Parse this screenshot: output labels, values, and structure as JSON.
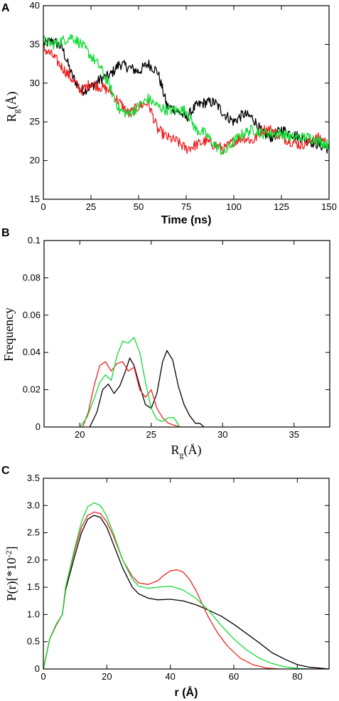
{
  "figure": {
    "panels": [
      "A",
      "B",
      "C"
    ]
  },
  "colors": {
    "black": "#000000",
    "red": "#ee2222",
    "green": "#11dd33"
  },
  "chart_data": [
    {
      "panel": "A",
      "type": "line",
      "xlabel": "Time (ns)",
      "ylabel_main": "R",
      "ylabel_sub": "g",
      "ylabel_rest": "(Å)",
      "xlim": [
        0,
        150
      ],
      "ylim": [
        15,
        40
      ],
      "xticks": [
        0,
        25,
        50,
        75,
        100,
        125,
        150
      ],
      "yticks": [
        15,
        20,
        25,
        30,
        35,
        40
      ],
      "noise": 0.7,
      "series": [
        {
          "color": "#000000",
          "x": [
            0,
            5,
            10,
            15,
            20,
            25,
            30,
            35,
            40,
            45,
            50,
            55,
            60,
            65,
            70,
            75,
            80,
            85,
            90,
            95,
            100,
            105,
            110,
            115,
            120,
            125,
            130,
            135,
            140,
            145,
            150
          ],
          "y": [
            35,
            35.5,
            34.5,
            31,
            29,
            29.5,
            30.5,
            31,
            32.5,
            32,
            31.5,
            32.5,
            31.5,
            27,
            26.5,
            25.5,
            27,
            27.5,
            27.5,
            26,
            25,
            26,
            25.5,
            23.5,
            23,
            24,
            23.5,
            23,
            22.5,
            22,
            21.5
          ]
        },
        {
          "color": "#ee2222",
          "x": [
            0,
            5,
            10,
            15,
            20,
            25,
            30,
            35,
            40,
            45,
            50,
            55,
            60,
            65,
            70,
            75,
            80,
            85,
            90,
            95,
            100,
            105,
            110,
            115,
            120,
            125,
            130,
            135,
            140,
            145,
            150
          ],
          "y": [
            34.5,
            33.5,
            32,
            30.5,
            29,
            30,
            29.5,
            29,
            27.5,
            26,
            27,
            27.5,
            24,
            23,
            22.5,
            21.5,
            22,
            22.5,
            22,
            21.5,
            22.5,
            23,
            22.5,
            24,
            24,
            23,
            22.5,
            22,
            22.5,
            23,
            22
          ]
        },
        {
          "color": "#11dd33",
          "x": [
            0,
            5,
            10,
            15,
            20,
            25,
            30,
            35,
            40,
            45,
            50,
            55,
            60,
            65,
            70,
            75,
            80,
            85,
            90,
            95,
            100,
            105,
            110,
            115,
            120,
            125,
            130,
            135,
            140,
            145,
            150
          ],
          "y": [
            35.5,
            35,
            35.5,
            36,
            35,
            33.5,
            32,
            29.5,
            26.5,
            26,
            27,
            28,
            27,
            26.5,
            26.5,
            26.5,
            24,
            23.5,
            22,
            21,
            22.5,
            23.5,
            24,
            23.5,
            23.5,
            23.5,
            23,
            23,
            23,
            22.5,
            22
          ]
        }
      ]
    },
    {
      "panel": "B",
      "type": "line",
      "xlabel_main": "R",
      "xlabel_sub": "g",
      "xlabel_rest": "(Å)",
      "ylabel": "Frequency",
      "xlim": [
        17.5,
        37.5
      ],
      "ylim": [
        0,
        0.1
      ],
      "xticks": [
        20,
        25,
        30,
        35
      ],
      "yticks": [
        0,
        0.02,
        0.04,
        0.06,
        0.08,
        0.1
      ],
      "ytick_labels": [
        "0",
        "0.02",
        "0.04",
        "0.06",
        "0.08",
        "0.1"
      ],
      "series": [
        {
          "color": "#000000",
          "x": [
            20.7,
            21.2,
            21.6,
            22.0,
            22.4,
            22.8,
            23.2,
            23.5,
            23.8,
            24.2,
            24.6,
            25.0,
            25.4,
            25.8,
            26.1,
            26.5,
            26.9,
            27.3,
            27.7,
            28.1,
            28.4,
            28.7
          ],
          "y": [
            0,
            0.008,
            0.02,
            0.023,
            0.018,
            0.022,
            0.03,
            0.037,
            0.033,
            0.022,
            0.012,
            0.01,
            0.018,
            0.035,
            0.041,
            0.036,
            0.022,
            0.012,
            0.006,
            0.002,
            0.002,
            0
          ]
        },
        {
          "color": "#ee2222",
          "x": [
            20.2,
            20.6,
            21.0,
            21.4,
            21.8,
            22.2,
            22.6,
            23.0,
            23.4,
            23.8,
            24.2,
            24.6,
            25.0,
            25.4,
            25.8,
            26.2,
            26.6,
            27.0
          ],
          "y": [
            0,
            0.008,
            0.022,
            0.033,
            0.035,
            0.03,
            0.034,
            0.035,
            0.03,
            0.032,
            0.02,
            0.016,
            0.02,
            0.01,
            0.005,
            0.002,
            0.001,
            0
          ]
        },
        {
          "color": "#11dd33",
          "x": [
            20.0,
            20.5,
            21.0,
            21.4,
            21.8,
            22.2,
            22.6,
            23.0,
            23.4,
            23.8,
            24.2,
            24.6,
            25.0,
            25.4,
            25.8,
            26.2,
            26.6,
            27.0
          ],
          "y": [
            0,
            0.005,
            0.015,
            0.024,
            0.028,
            0.025,
            0.038,
            0.046,
            0.045,
            0.048,
            0.04,
            0.024,
            0.01,
            0.004,
            0.003,
            0.005,
            0.005,
            0
          ]
        }
      ]
    },
    {
      "panel": "C",
      "type": "line",
      "xlabel": "r (Å)",
      "ylabel_main": "P(r)[*10",
      "ylabel_sup": "-2",
      "ylabel_end": "]",
      "xlim": [
        0,
        90
      ],
      "ylim": [
        0,
        3.5
      ],
      "xticks": [
        0,
        20,
        40,
        60,
        80
      ],
      "yticks": [
        0,
        0.5,
        1.0,
        1.5,
        2.0,
        2.5,
        3.0,
        3.5
      ],
      "ytick_labels": [
        "0",
        "0.5",
        "1.0",
        "1.5",
        "2.0",
        "2.5",
        "3.0",
        "3.5"
      ],
      "series": [
        {
          "color": "#000000",
          "x": [
            0,
            2,
            4,
            6,
            7,
            10,
            12,
            14,
            16,
            18,
            20,
            22,
            25,
            28,
            30,
            33,
            36,
            40,
            44,
            48,
            52,
            56,
            60,
            64,
            68,
            72,
            76,
            80,
            84,
            88,
            90
          ],
          "y": [
            0,
            0.55,
            0.8,
            1.0,
            1.45,
            2.1,
            2.5,
            2.75,
            2.82,
            2.78,
            2.6,
            2.3,
            1.85,
            1.5,
            1.38,
            1.3,
            1.27,
            1.28,
            1.25,
            1.18,
            1.08,
            0.97,
            0.82,
            0.65,
            0.48,
            0.3,
            0.18,
            0.08,
            0.03,
            0.01,
            0
          ]
        },
        {
          "color": "#ee2222",
          "x": [
            0,
            2,
            4,
            6,
            7,
            10,
            12,
            14,
            16,
            18,
            20,
            22,
            25,
            28,
            30,
            33,
            36,
            38,
            40,
            42,
            44,
            46,
            48,
            50,
            52,
            55,
            58,
            62,
            66,
            70,
            74
          ],
          "y": [
            0,
            0.55,
            0.8,
            1.0,
            1.5,
            2.2,
            2.6,
            2.82,
            2.88,
            2.85,
            2.7,
            2.45,
            2.0,
            1.7,
            1.58,
            1.55,
            1.62,
            1.72,
            1.8,
            1.82,
            1.78,
            1.65,
            1.45,
            1.2,
            0.95,
            0.65,
            0.42,
            0.2,
            0.08,
            0.02,
            0
          ]
        },
        {
          "color": "#11dd33",
          "x": [
            0,
            2,
            4,
            6,
            7,
            10,
            12,
            14,
            16,
            18,
            20,
            22,
            25,
            28,
            30,
            33,
            36,
            40,
            44,
            48,
            52,
            56,
            60,
            64,
            68,
            72,
            76,
            80,
            84
          ],
          "y": [
            0,
            0.55,
            0.82,
            1.0,
            1.5,
            2.25,
            2.7,
            2.98,
            3.05,
            3.0,
            2.8,
            2.5,
            2.0,
            1.65,
            1.52,
            1.48,
            1.5,
            1.52,
            1.45,
            1.3,
            1.08,
            0.8,
            0.55,
            0.35,
            0.2,
            0.1,
            0.04,
            0.01,
            0
          ]
        }
      ]
    }
  ]
}
